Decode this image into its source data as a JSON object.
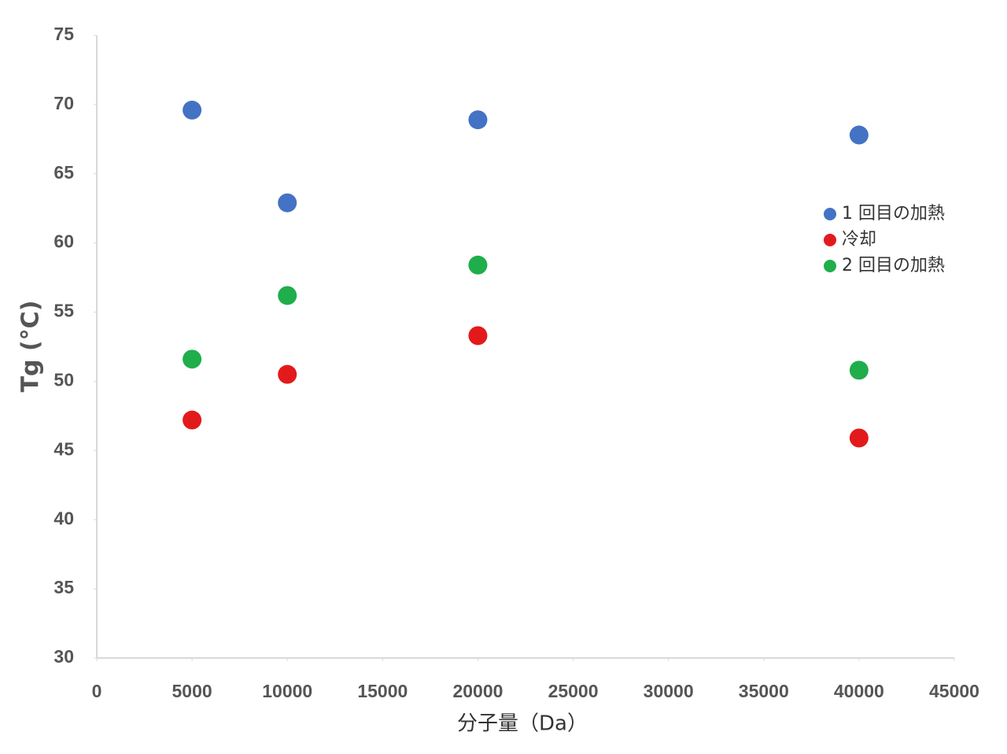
{
  "chart_data": {
    "type": "scatter",
    "x_label": "分子量（Da）",
    "y_label": "Tg (°C)",
    "xlim": [
      0,
      45000
    ],
    "xticks": [
      0,
      5000,
      10000,
      15000,
      20000,
      25000,
      30000,
      35000,
      40000,
      45000
    ],
    "ylim": [
      30,
      75
    ],
    "yticks": [
      30,
      35,
      40,
      45,
      50,
      55,
      60,
      65,
      70,
      75
    ],
    "grid": false,
    "legend": "right",
    "series": [
      {
        "name": "1 回目の加熱",
        "color": "#4472c4",
        "x": [
          5000,
          10000,
          20000,
          40000
        ],
        "values": [
          69.6,
          62.9,
          68.9,
          67.8
        ]
      },
      {
        "name": "冷却",
        "color": "#e31a1c",
        "x": [
          5000,
          10000,
          20000,
          40000
        ],
        "values": [
          47.2,
          50.5,
          53.3,
          45.9
        ]
      },
      {
        "name": "2 回目の加熱",
        "color": "#1fae4b",
        "x": [
          5000,
          10000,
          20000,
          40000
        ],
        "values": [
          51.6,
          56.2,
          58.4,
          50.8
        ]
      }
    ]
  }
}
